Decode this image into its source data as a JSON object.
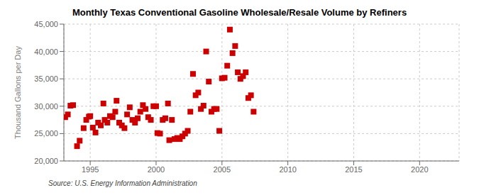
{
  "chart_data": {
    "type": "scatter",
    "title": "Monthly Texas Conventional Gasoline Wholesale/Resale Volume by Refiners",
    "ylabel": "Thousand Gallons per Day",
    "source": "Source: U.S. Energy Information Administration",
    "color": "#CC0000",
    "marker": "square",
    "grid": true,
    "xlim": [
      1993.0,
      2023.0
    ],
    "xticks": [
      1995,
      2000,
      2005,
      2010,
      2015,
      2020
    ],
    "ylim": [
      20000,
      45000
    ],
    "yticks": [
      {
        "value": 20000,
        "label": "20,000"
      },
      {
        "value": 25000,
        "label": "25,000"
      },
      {
        "value": 30000,
        "label": "30,000"
      },
      {
        "value": 35000,
        "label": "35,000"
      },
      {
        "value": 40000,
        "label": "40,000"
      },
      {
        "value": 45000,
        "label": "45,000"
      }
    ],
    "x": [
      1993.1,
      1993.3,
      1993.5,
      1993.7,
      1994.0,
      1994.2,
      1994.5,
      1994.7,
      1994.9,
      1995.0,
      1995.2,
      1995.4,
      1995.6,
      1995.8,
      1996.0,
      1996.1,
      1996.3,
      1996.5,
      1996.7,
      1996.9,
      1997.0,
      1997.2,
      1997.4,
      1997.6,
      1997.8,
      1998.0,
      1998.2,
      1998.4,
      1998.6,
      1998.8,
      1999.0,
      1999.2,
      1999.4,
      1999.6,
      1999.8,
      2000.0,
      2000.1,
      2000.3,
      2000.5,
      2000.7,
      2000.9,
      2001.0,
      2001.2,
      2001.4,
      2001.6,
      2001.8,
      2002.0,
      2002.2,
      2002.4,
      2002.6,
      2002.8,
      2003.0,
      2003.2,
      2003.4,
      2003.6,
      2003.8,
      2004.0,
      2004.2,
      2004.4,
      2004.6,
      2004.8,
      2005.0,
      2005.2,
      2005.4,
      2005.6,
      2005.8,
      2006.0,
      2006.2,
      2006.4,
      2006.6,
      2006.8,
      2007.0,
      2007.2,
      2007.4
    ],
    "values": [
      28000,
      28500,
      30100,
      30200,
      22700,
      23700,
      26000,
      27500,
      28100,
      28200,
      26100,
      25200,
      27000,
      26500,
      30500,
      27500,
      27000,
      28200,
      28000,
      29000,
      31000,
      27000,
      26500,
      26000,
      28500,
      29800,
      27500,
      27000,
      27800,
      29000,
      30200,
      29500,
      28000,
      27500,
      30000,
      30000,
      25100,
      25000,
      27500,
      27800,
      30500,
      23800,
      27500,
      24000,
      24200,
      24000,
      24500,
      25000,
      25500,
      29000,
      35900,
      32000,
      32500,
      29500,
      30100,
      40000,
      34500,
      29000,
      29500,
      29500,
      25500,
      35100,
      35200,
      37400,
      44000,
      39700,
      41000,
      36200,
      35000,
      35500,
      36200,
      31500,
      32000,
      29000
    ]
  }
}
